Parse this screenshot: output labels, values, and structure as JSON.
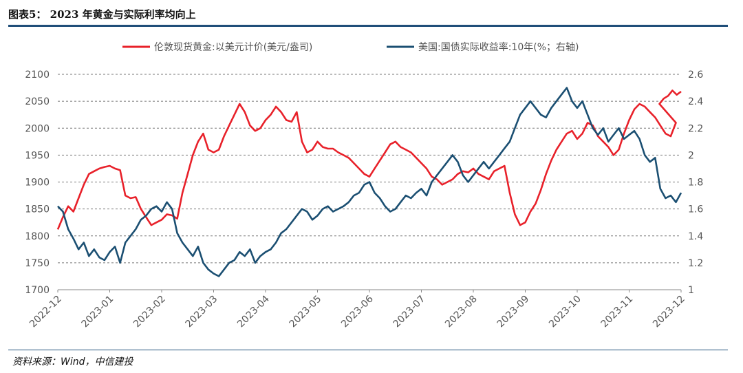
{
  "figure": {
    "title": "图表5：  2023 年黄金与实际利率均向上",
    "source": "资料来源：Wind，中信建投"
  },
  "chart_data": {
    "type": "line",
    "x_ticks": [
      "2022-12",
      "2023-01",
      "2023-02",
      "2023-03",
      "2023-04",
      "2023-05",
      "2023-06",
      "2023-07",
      "2023-08",
      "2023-09",
      "2023-10",
      "2023-11",
      "2023-12"
    ],
    "left_axis": {
      "min": 1700,
      "max": 2100,
      "ticks": [
        1700,
        1750,
        1800,
        1850,
        1900,
        1950,
        2000,
        2050,
        2100
      ]
    },
    "right_axis": {
      "min": 1,
      "max": 2.6,
      "ticks": [
        "1",
        "1.2",
        "1.4",
        "1.6",
        "1.8",
        "2",
        "2.2",
        "2.4",
        "2.6"
      ]
    },
    "grid": "horizontal dashed",
    "legend_position": "top",
    "series": [
      {
        "name": "伦敦现货黄金:以美元计价(美元/盎司)",
        "axis": "left",
        "color": "#e8212a",
        "x": [
          0,
          0.1,
          0.2,
          0.3,
          0.4,
          0.5,
          0.6,
          0.7,
          0.8,
          0.9,
          1.0,
          1.1,
          1.2,
          1.3,
          1.4,
          1.5,
          1.6,
          1.7,
          1.8,
          1.9,
          2.0,
          2.1,
          2.2,
          2.3,
          2.4,
          2.5,
          2.6,
          2.7,
          2.8,
          2.9,
          3.0,
          3.1,
          3.2,
          3.3,
          3.4,
          3.5,
          3.6,
          3.7,
          3.8,
          3.9,
          4.0,
          4.1,
          4.2,
          4.3,
          4.4,
          4.5,
          4.6,
          4.7,
          4.8,
          4.9,
          5.0,
          5.1,
          5.2,
          5.3,
          5.4,
          5.5,
          5.6,
          5.7,
          5.8,
          5.9,
          6.0,
          6.1,
          6.2,
          6.3,
          6.4,
          6.5,
          6.6,
          6.7,
          6.8,
          6.9,
          7.0,
          7.1,
          7.2,
          7.3,
          7.4,
          7.5,
          7.6,
          7.7,
          7.8,
          7.9,
          8.0,
          8.1,
          8.2,
          8.3,
          8.4,
          8.5,
          8.6,
          8.7,
          8.8,
          8.9,
          9.0,
          9.1,
          9.2,
          9.3,
          9.4,
          9.5,
          9.6,
          9.7,
          9.8,
          9.9,
          10.0,
          10.1,
          10.2,
          10.3,
          10.4,
          10.5,
          10.6,
          10.7,
          10.8,
          10.9,
          11.0,
          11.1,
          11.2,
          11.3,
          11.4,
          11.5,
          11.6,
          11.7,
          11.8,
          11.9,
          12.0
        ],
        "values": [
          1812,
          1835,
          1855,
          1845,
          1870,
          1895,
          1915,
          1920,
          1925,
          1928,
          1930,
          1925,
          1922,
          1875,
          1870,
          1872,
          1850,
          1835,
          1820,
          1825,
          1830,
          1840,
          1838,
          1832,
          1880,
          1915,
          1950,
          1975,
          1990,
          1960,
          1955,
          1960,
          1985,
          2005,
          2025,
          2045,
          2030,
          2005,
          1995,
          2000,
          2015,
          2025,
          2040,
          2030,
          2015,
          2012,
          2030,
          1975,
          1955,
          1960,
          1975,
          1965,
          1962,
          1962,
          1955,
          1950,
          1945,
          1935,
          1925,
          1915,
          1910,
          1925,
          1940,
          1955,
          1970,
          1975,
          1965,
          1960,
          1955,
          1945,
          1935,
          1925,
          1910,
          1905,
          1895,
          1900,
          1905,
          1915,
          1920,
          1918,
          1925,
          1915,
          1910,
          1905,
          1920,
          1925,
          1930,
          1880,
          1840,
          1820,
          1825,
          1845,
          1860,
          1885,
          1915,
          1940,
          1960,
          1975,
          1990,
          1995,
          1980,
          1990,
          2010,
          2005,
          1985,
          1975,
          1965,
          1950,
          1960,
          1990,
          2015,
          2035,
          2045,
          2040,
          2030,
          2020,
          2005,
          1990,
          1985,
          2010,
          2035
        ],
        "late_values": [
          2045,
          2055,
          2060,
          2070,
          2062,
          2068
        ]
      },
      {
        "name": "美国:国债实际收益率:10年(%；右轴)",
        "axis": "right",
        "color": "#1b4f72",
        "x": [
          0,
          0.1,
          0.2,
          0.3,
          0.4,
          0.5,
          0.6,
          0.7,
          0.8,
          0.9,
          1.0,
          1.1,
          1.2,
          1.3,
          1.4,
          1.5,
          1.6,
          1.7,
          1.8,
          1.9,
          2.0,
          2.1,
          2.2,
          2.3,
          2.4,
          2.5,
          2.6,
          2.7,
          2.8,
          2.9,
          3.0,
          3.1,
          3.2,
          3.3,
          3.4,
          3.5,
          3.6,
          3.7,
          3.8,
          3.9,
          4.0,
          4.1,
          4.2,
          4.3,
          4.4,
          4.5,
          4.6,
          4.7,
          4.8,
          4.9,
          5.0,
          5.1,
          5.2,
          5.3,
          5.4,
          5.5,
          5.6,
          5.7,
          5.8,
          5.9,
          6.0,
          6.1,
          6.2,
          6.3,
          6.4,
          6.5,
          6.6,
          6.7,
          6.8,
          6.9,
          7.0,
          7.1,
          7.2,
          7.3,
          7.4,
          7.5,
          7.6,
          7.7,
          7.8,
          7.9,
          8.0,
          8.1,
          8.2,
          8.3,
          8.4,
          8.5,
          8.6,
          8.7,
          8.8,
          8.9,
          9.0,
          9.1,
          9.2,
          9.3,
          9.4,
          9.5,
          9.6,
          9.7,
          9.8,
          9.9,
          10.0,
          10.1,
          10.2,
          10.3,
          10.4,
          10.5,
          10.6,
          10.7,
          10.8,
          10.9,
          11.0,
          11.1,
          11.2,
          11.3,
          11.4,
          11.5,
          11.6,
          11.7,
          11.8,
          11.9,
          12.0
        ],
        "values": [
          1.62,
          1.58,
          1.45,
          1.38,
          1.3,
          1.35,
          1.25,
          1.3,
          1.24,
          1.22,
          1.28,
          1.32,
          1.2,
          1.35,
          1.4,
          1.45,
          1.52,
          1.55,
          1.6,
          1.62,
          1.58,
          1.65,
          1.6,
          1.42,
          1.35,
          1.3,
          1.25,
          1.32,
          1.2,
          1.15,
          1.12,
          1.1,
          1.15,
          1.2,
          1.22,
          1.28,
          1.25,
          1.3,
          1.2,
          1.25,
          1.28,
          1.3,
          1.35,
          1.42,
          1.45,
          1.5,
          1.55,
          1.6,
          1.58,
          1.52,
          1.55,
          1.6,
          1.62,
          1.58,
          1.6,
          1.62,
          1.65,
          1.7,
          1.72,
          1.78,
          1.8,
          1.72,
          1.68,
          1.62,
          1.58,
          1.6,
          1.65,
          1.7,
          1.68,
          1.72,
          1.75,
          1.7,
          1.8,
          1.85,
          1.9,
          1.95,
          2.0,
          1.95,
          1.85,
          1.8,
          1.85,
          1.9,
          1.95,
          1.9,
          1.95,
          2.0,
          2.05,
          2.1,
          2.2,
          2.3,
          2.35,
          2.4,
          2.35,
          2.3,
          2.28,
          2.35,
          2.4,
          2.45,
          2.5,
          2.4,
          2.35,
          2.4,
          2.3,
          2.2,
          2.15,
          2.2,
          2.1,
          2.15,
          2.2,
          2.12,
          2.15,
          2.18,
          2.12,
          2.0,
          1.95,
          1.98,
          1.75,
          1.68,
          1.7,
          1.65,
          1.72
        ]
      }
    ]
  }
}
